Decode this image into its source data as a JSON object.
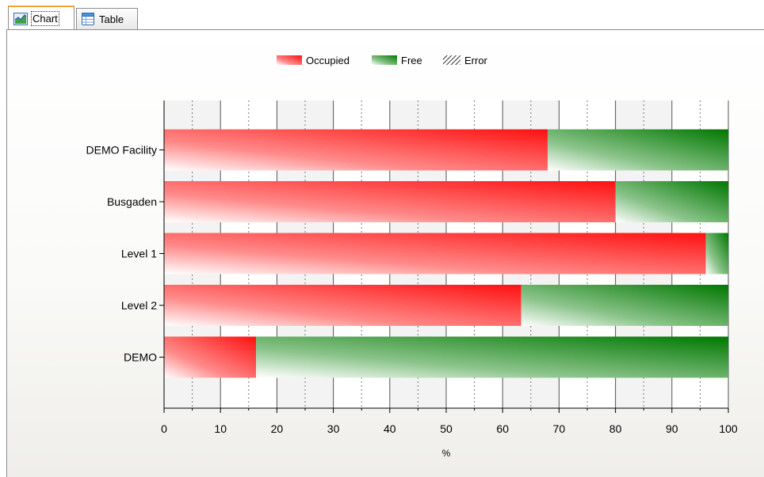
{
  "tabs": [
    {
      "label": "Chart",
      "icon": "chart-icon",
      "active": true
    },
    {
      "label": "Table",
      "icon": "table-icon",
      "active": false
    }
  ],
  "chart_data": {
    "type": "bar",
    "orientation": "horizontal",
    "stacked": true,
    "categories": [
      "DEMO Facility",
      "Busgaden",
      "Level 1",
      "Level 2",
      "DEMO"
    ],
    "series": [
      {
        "name": "Occupied",
        "color": "#ff2020",
        "values": [
          68,
          80,
          96,
          63.3,
          16.3
        ]
      },
      {
        "name": "Free",
        "color": "#108010",
        "values": [
          32,
          20,
          4,
          36.7,
          83.7
        ]
      },
      {
        "name": "Error",
        "pattern": "hatched",
        "values": [
          0,
          0,
          0,
          0,
          0
        ]
      }
    ],
    "xlabel": "%",
    "ylabel": "",
    "xlim": [
      0,
      100
    ],
    "xticks": [
      0,
      10,
      20,
      30,
      40,
      50,
      60,
      70,
      80,
      90,
      100
    ],
    "grid": true,
    "legend_position": "top-center"
  }
}
